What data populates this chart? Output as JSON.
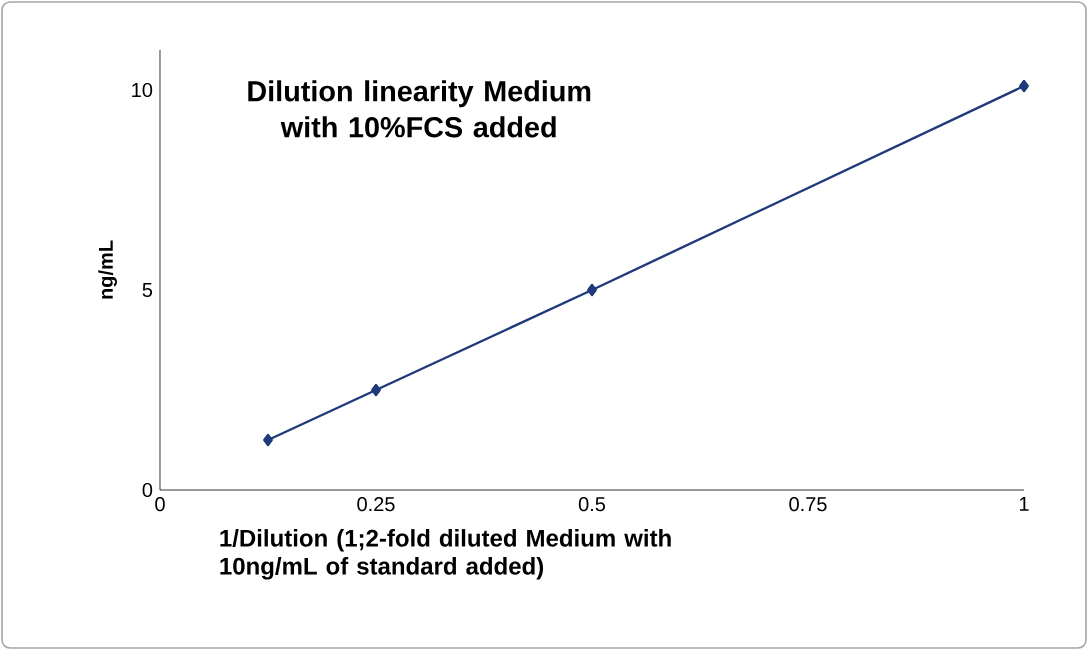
{
  "chart_data": {
    "type": "line",
    "title": "Dilution linearity Medium with 10%FCS added",
    "xlabel": "1/Dilution (1;2-fold diluted Medium with 10ng/mL of standard added)",
    "ylabel": "ng/mL",
    "x": [
      0.125,
      0.25,
      0.5,
      1
    ],
    "series": [
      {
        "color": "#1f3a7a",
        "values": [
          1.25,
          2.5,
          5,
          10.1
        ]
      }
    ],
    "xlim": [
      0,
      1
    ],
    "ylim": [
      0,
      11
    ],
    "xticks": [
      0,
      0.25,
      0.5,
      0.75,
      1
    ],
    "yticks": [
      0,
      5,
      10
    ],
    "marker": "diamond",
    "line_style": "solid",
    "grid": false
  }
}
